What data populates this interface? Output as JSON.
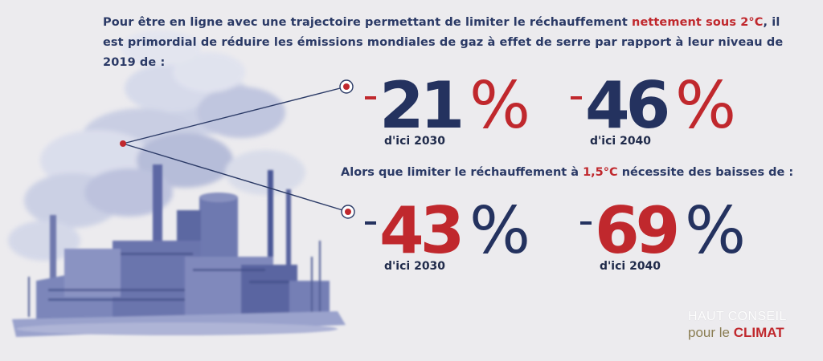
{
  "intro": {
    "part1": "Pour être en ligne avec une trajectoire permettant de limiter le réchauffement ",
    "highlight": "nettement sous 2°C",
    "part2": ", il est primordial de réduire les émissions mondiales de gaz à effet de serre par rapport à leur niveau de 2019 de :"
  },
  "intro2": {
    "part1": "Alors que limiter le réchauffement à ",
    "highlight": "1,5°C",
    "part2": " nécessite des baisses de :"
  },
  "stats_2c": [
    {
      "value": "21",
      "unit": "%",
      "period": "d'ici 2030"
    },
    {
      "value": "46",
      "unit": "%",
      "period": "d'ici 2040"
    }
  ],
  "stats_15c": [
    {
      "value": "43",
      "unit": "%",
      "period": "d'ici 2030"
    },
    {
      "value": "69",
      "unit": "%",
      "period": "d'ici 2040"
    }
  ],
  "logo": {
    "line1": "HAUT CONSEIL",
    "line2_prefix": "pour le ",
    "line2_accent": "CLIMAT"
  },
  "colors": {
    "navy": "#24325f",
    "red": "#c0282d",
    "background": "#ecebee"
  }
}
